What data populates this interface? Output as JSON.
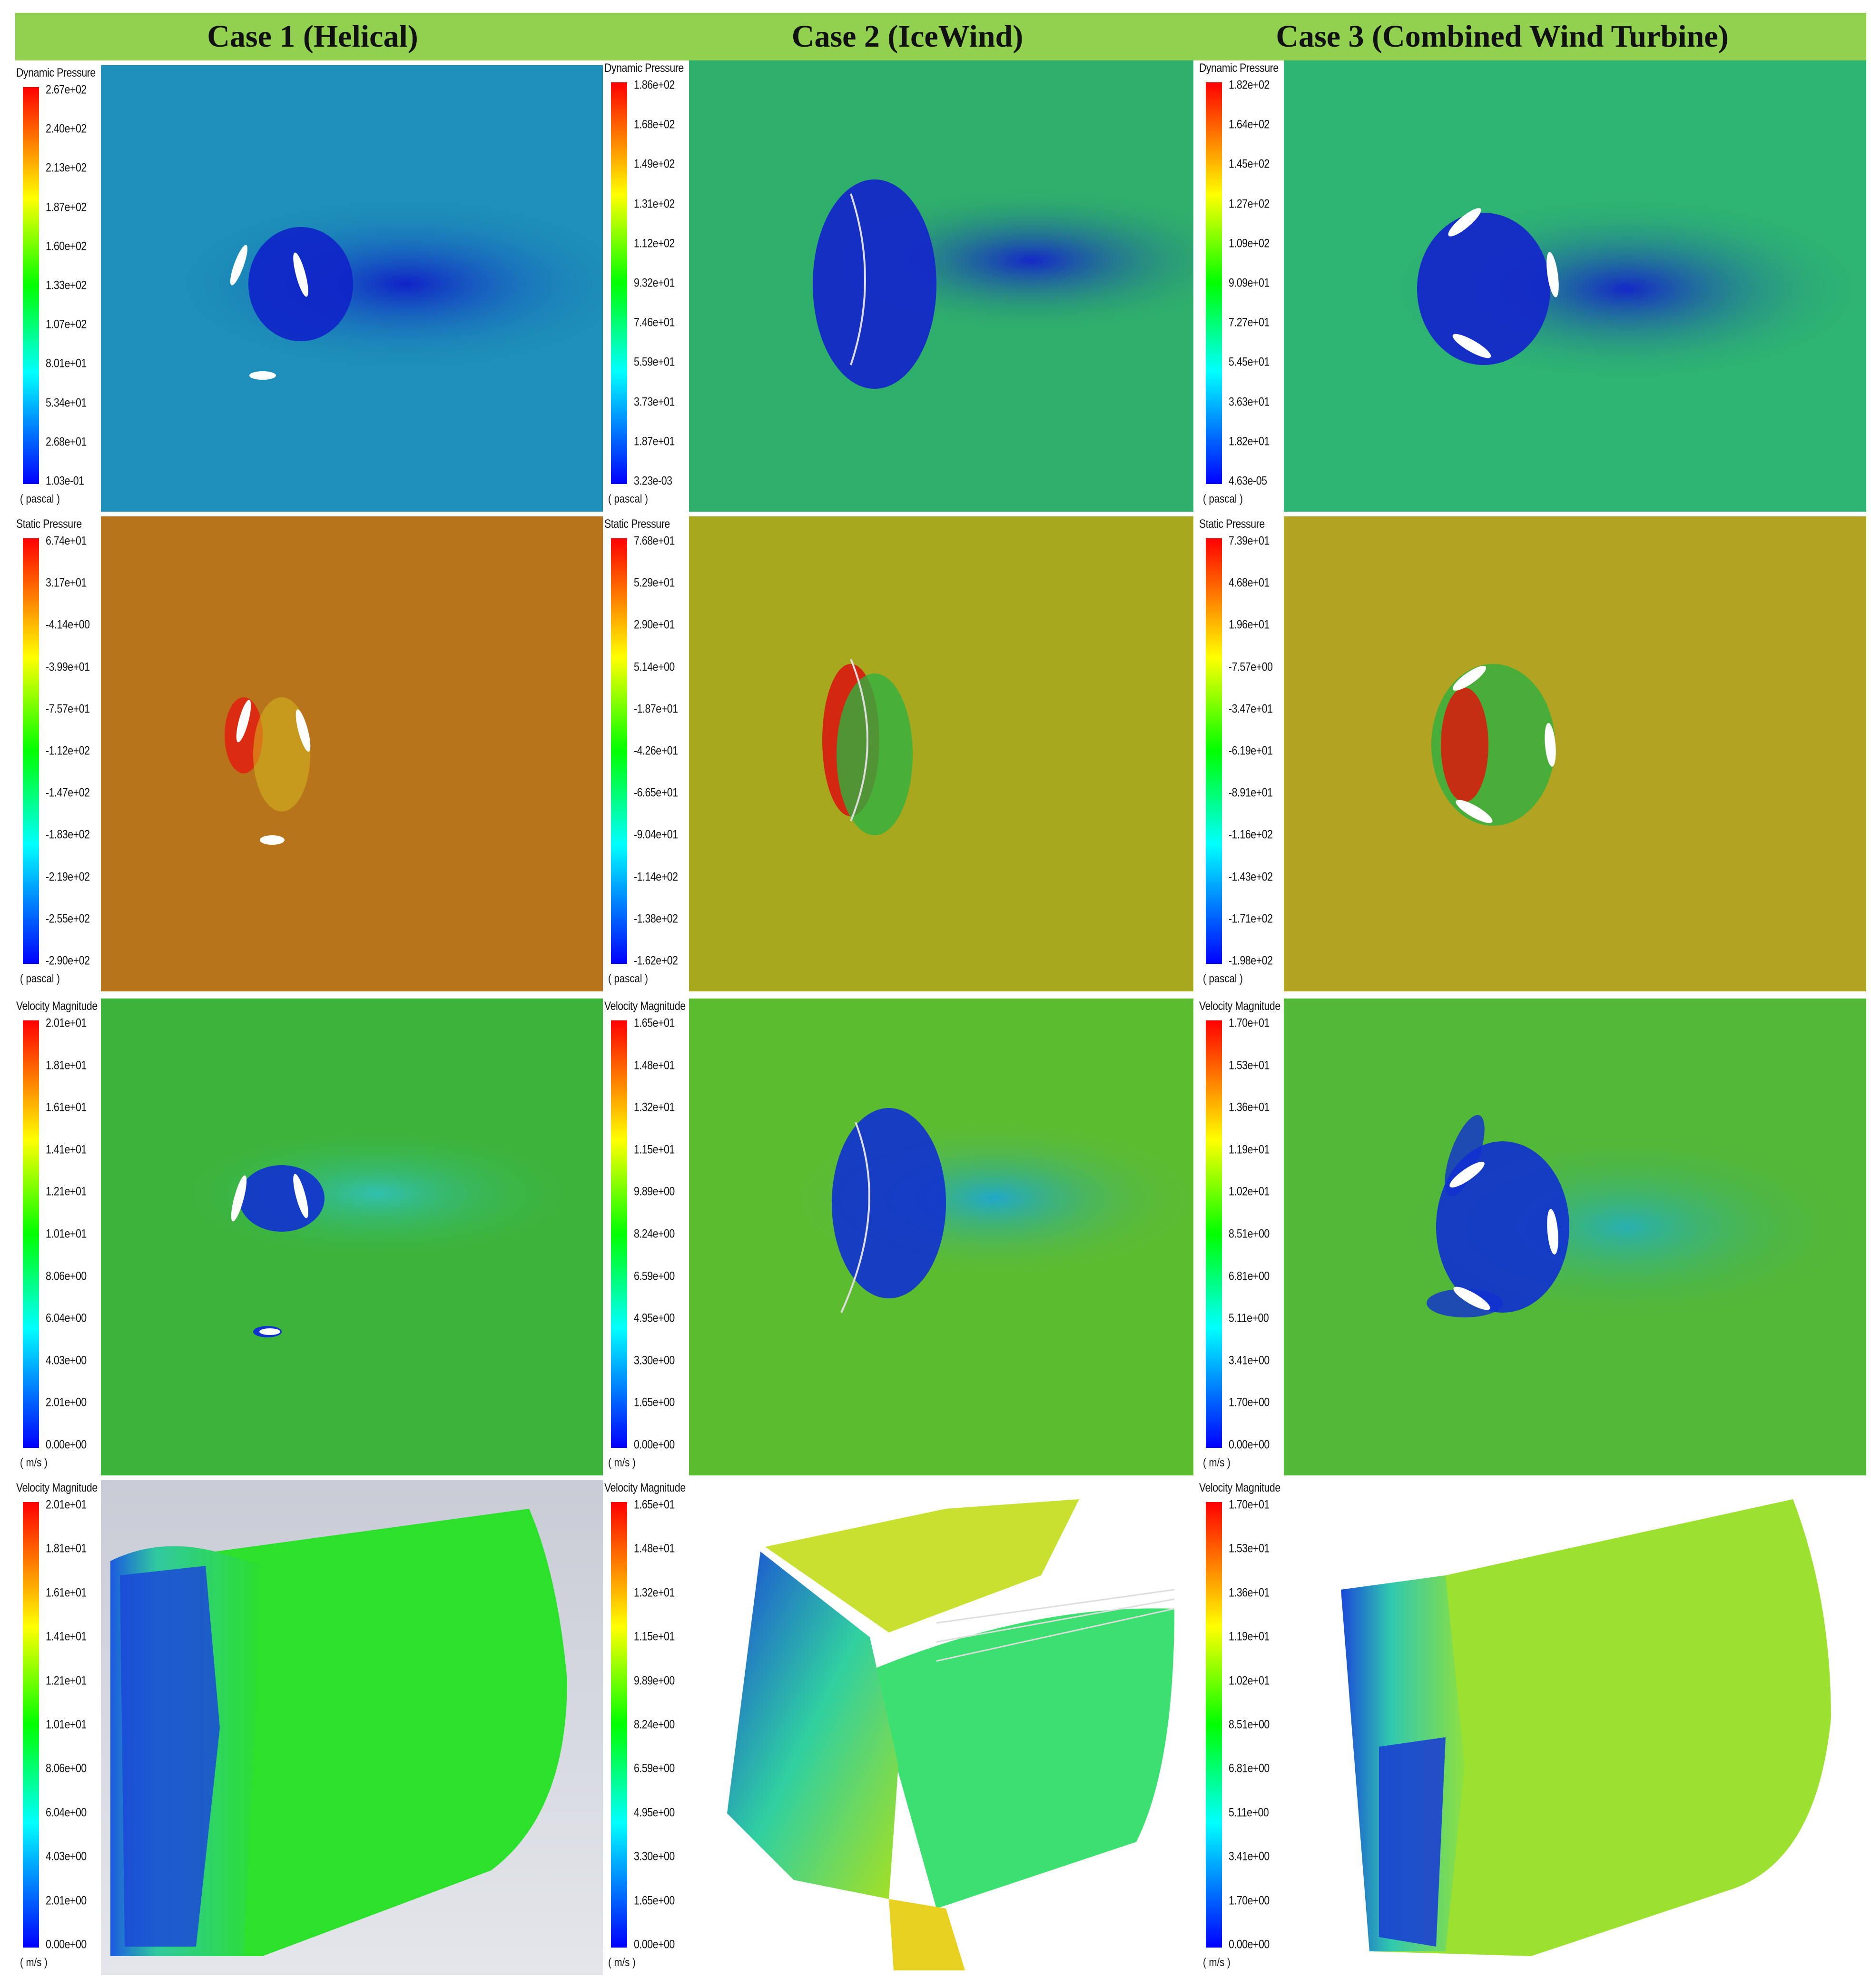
{
  "header": {
    "case1_title": "Case 1 (Helical)",
    "case2_title": "Case 2 (IceWind)",
    "case3_title": "Case 3 (Combined Wind Turbine)"
  },
  "panels": {
    "r1c1": {
      "title": "Dynamic Pressure",
      "unit": "( pascal )",
      "ticks": [
        "2.67e+02",
        "2.40e+02",
        "2.13e+02",
        "1.87e+02",
        "1.60e+02",
        "1.33e+02",
        "1.07e+02",
        "8.01e+01",
        "5.34e+01",
        "2.68e+01",
        "1.03e-01"
      ]
    },
    "r1c2": {
      "title": "Dynamic Pressure",
      "unit": "( pascal )",
      "ticks": [
        "1.86e+02",
        "1.68e+02",
        "1.49e+02",
        "1.31e+02",
        "1.12e+02",
        "9.32e+01",
        "7.46e+01",
        "5.59e+01",
        "3.73e+01",
        "1.87e+01",
        "3.23e-03"
      ]
    },
    "r1c3": {
      "title": "Dynamic Pressure",
      "unit": "( pascal )",
      "ticks": [
        "1.82e+02",
        "1.64e+02",
        "1.45e+02",
        "1.27e+02",
        "1.09e+02",
        "9.09e+01",
        "7.27e+01",
        "5.45e+01",
        "3.63e+01",
        "1.82e+01",
        "4.63e-05"
      ]
    },
    "r2c1": {
      "title": "Static Pressure",
      "unit": "( pascal )",
      "ticks": [
        "6.74e+01",
        "3.17e+01",
        "-4.14e+00",
        "-3.99e+01",
        "-7.57e+01",
        "-1.12e+02",
        "-1.47e+02",
        "-1.83e+02",
        "-2.19e+02",
        "-2.55e+02",
        "-2.90e+02"
      ]
    },
    "r2c2": {
      "title": "Static Pressure",
      "unit": "( pascal )",
      "ticks": [
        "7.68e+01",
        "5.29e+01",
        "2.90e+01",
        "5.14e+00",
        "-1.87e+01",
        "-4.26e+01",
        "-6.65e+01",
        "-9.04e+01",
        "-1.14e+02",
        "-1.38e+02",
        "-1.62e+02"
      ]
    },
    "r2c3": {
      "title": "Static Pressure",
      "unit": "( pascal )",
      "ticks": [
        "7.39e+01",
        "4.68e+01",
        "1.96e+01",
        "-7.57e+00",
        "-3.47e+01",
        "-6.19e+01",
        "-8.91e+01",
        "-1.16e+02",
        "-1.43e+02",
        "-1.71e+02",
        "-1.98e+02"
      ]
    },
    "r3c1": {
      "title": "Velocity Magnitude",
      "unit": "( m/s )",
      "ticks": [
        "2.01e+01",
        "1.81e+01",
        "1.61e+01",
        "1.41e+01",
        "1.21e+01",
        "1.01e+01",
        "8.06e+00",
        "6.04e+00",
        "4.03e+00",
        "2.01e+00",
        "0.00e+00"
      ]
    },
    "r3c2": {
      "title": "Velocity Magnitude",
      "unit": "( m/s )",
      "ticks": [
        "1.65e+01",
        "1.48e+01",
        "1.32e+01",
        "1.15e+01",
        "9.89e+00",
        "8.24e+00",
        "6.59e+00",
        "4.95e+00",
        "3.30e+00",
        "1.65e+00",
        "0.00e+00"
      ]
    },
    "r3c3": {
      "title": "Velocity Magnitude",
      "unit": "( m/s )",
      "ticks": [
        "1.70e+01",
        "1.53e+01",
        "1.36e+01",
        "1.19e+01",
        "1.02e+01",
        "8.51e+00",
        "6.81e+00",
        "5.11e+00",
        "3.41e+00",
        "1.70e+00",
        "0.00e+00"
      ]
    },
    "r4c1": {
      "title": "Velocity Magnitude",
      "unit": "( m/s )",
      "ticks": [
        "2.01e+01",
        "1.81e+01",
        "1.61e+01",
        "1.41e+01",
        "1.21e+01",
        "1.01e+01",
        "8.06e+00",
        "6.04e+00",
        "4.03e+00",
        "2.01e+00",
        "0.00e+00"
      ]
    },
    "r4c2": {
      "title": "Velocity Magnitude",
      "unit": "( m/s )",
      "ticks": [
        "1.65e+01",
        "1.48e+01",
        "1.32e+01",
        "1.15e+01",
        "9.89e+00",
        "8.24e+00",
        "6.59e+00",
        "4.95e+00",
        "3.30e+00",
        "1.65e+00",
        "0.00e+00"
      ]
    },
    "r4c3": {
      "title": "Velocity Magnitude",
      "unit": "( m/s )",
      "ticks": [
        "1.70e+01",
        "1.53e+01",
        "1.36e+01",
        "1.19e+01",
        "1.02e+01",
        "8.51e+00",
        "6.81e+00",
        "5.11e+00",
        "3.41e+00",
        "1.70e+00",
        "0.00e+00"
      ]
    }
  },
  "colors": {
    "header_bar": "#92d050",
    "dynamic_pressure_bg": "#1a8fb5",
    "static_pressure_case1_bg": "#b8741a",
    "static_pressure_bg": "#a8a81e",
    "velocity_bg": "#3cb43c",
    "wake_low": "#1030d0"
  }
}
